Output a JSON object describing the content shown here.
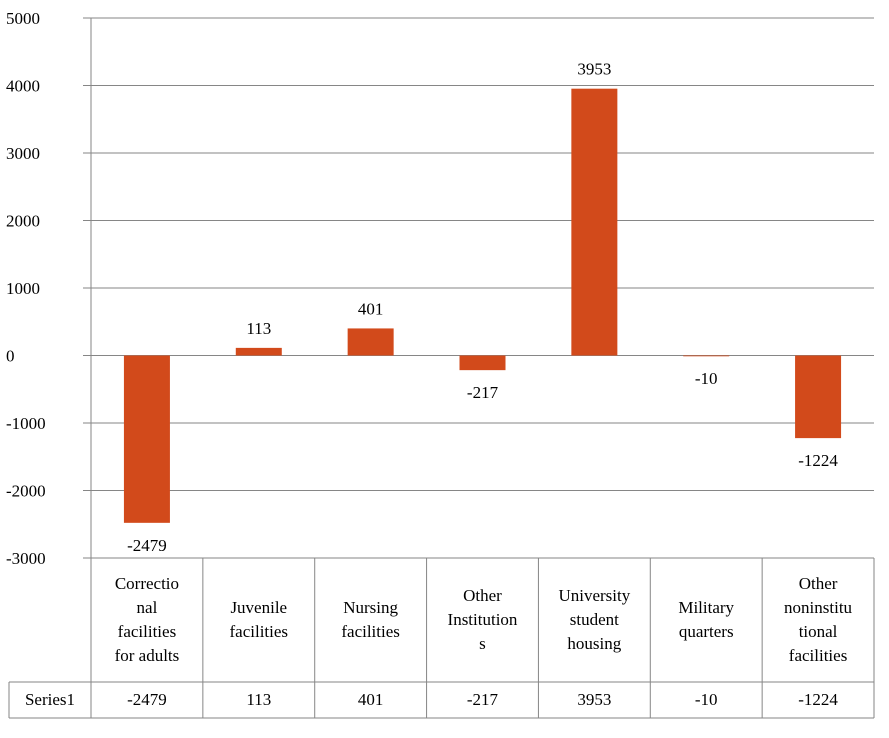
{
  "chart_data": {
    "type": "bar",
    "categories": [
      "Correctional facilities for adults",
      "Juvenile facilities",
      "Nursing facilities",
      "Other Institutions",
      "University student housing",
      "Military quarters",
      "Other noninstitutional facilities"
    ],
    "category_lines": [
      [
        "Correctio",
        "nal",
        "facilities",
        "for adults"
      ],
      [
        "Juvenile",
        "facilities"
      ],
      [
        "Nursing",
        "facilities"
      ],
      [
        "Other",
        "Institution",
        "s"
      ],
      [
        "University",
        "student",
        "housing"
      ],
      [
        "Military",
        "quarters"
      ],
      [
        "Other",
        "noninstitu",
        "tional",
        "facilities"
      ]
    ],
    "series": [
      {
        "name": "Series1",
        "values": [
          -2479,
          113,
          401,
          -217,
          3953,
          -10,
          -1224
        ]
      }
    ],
    "data_labels": [
      "-2479",
      "113",
      "401",
      "-217",
      "3953",
      "-10",
      "-1224"
    ],
    "table_values": [
      "-2479",
      "113",
      "401",
      "-217",
      "3953",
      "-10",
      "-1224"
    ],
    "yticks": [
      "5000",
      "4000",
      "3000",
      "2000",
      "1000",
      "0",
      "-1000",
      "-2000",
      "-3000"
    ],
    "ylim": [
      -3000,
      5000
    ],
    "title": "",
    "xlabel": "",
    "ylabel": "",
    "grid": true,
    "legend": "data-table",
    "bar_color": "#d24a1b"
  }
}
